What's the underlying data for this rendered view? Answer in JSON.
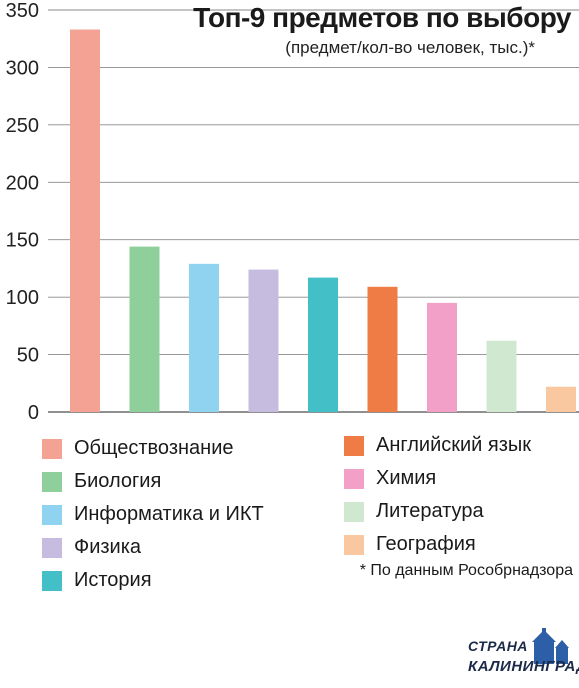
{
  "chart_data": {
    "type": "bar",
    "title": "Топ-9 предметов по выбору",
    "subtitle": "(предмет/кол-во человек, тыс.)*",
    "categories": [
      "Обществознание",
      "Биология",
      "Информатика и ИКТ",
      "Физика",
      "История",
      "Английский язык",
      "Химия",
      "Литература",
      "География"
    ],
    "values": [
      333,
      144,
      129,
      124,
      117,
      109,
      95,
      62,
      22
    ],
    "colors": [
      "#f4a293",
      "#8fcf9c",
      "#8fd3f0",
      "#c6bce0",
      "#43bfc7",
      "#ef7c45",
      "#f2a0c8",
      "#cfe8cf",
      "#f9c7a0"
    ],
    "ylim": [
      0,
      350
    ],
    "yticks": [
      0,
      50,
      100,
      150,
      200,
      250,
      300,
      350
    ],
    "grid": true,
    "legend_position": "bottom"
  },
  "footnote": "* По данным Рособрнадзора",
  "logo": {
    "line1": "СТРАНА",
    "line2": "КАЛИНИНГРАД"
  }
}
